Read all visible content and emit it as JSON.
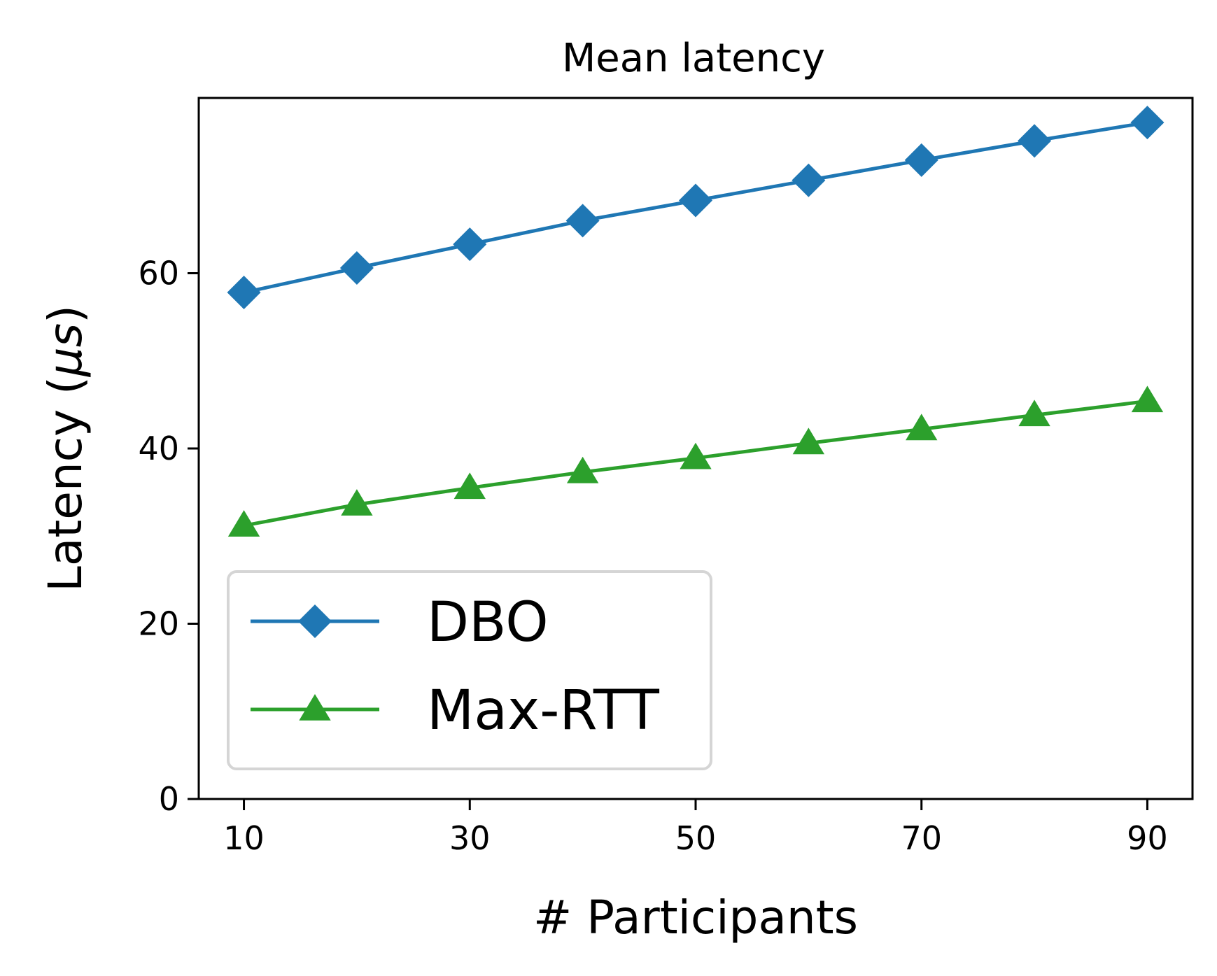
{
  "chart_data": {
    "type": "line",
    "title": "Mean latency",
    "xlabel": "# Participants",
    "ylabel_prefix": "Latency (",
    "ylabel_unit": "μs",
    "ylabel_suffix": ")",
    "x": [
      10,
      20,
      30,
      40,
      50,
      60,
      70,
      80,
      90
    ],
    "xticks": [
      10,
      30,
      50,
      70,
      90
    ],
    "yticks": [
      0,
      20,
      40,
      60
    ],
    "xlim": [
      6,
      94
    ],
    "ylim": [
      0,
      80
    ],
    "grid": false,
    "legend_position": "lower-left",
    "series": [
      {
        "name": "DBO",
        "color": "#1f77b4",
        "marker": "diamond",
        "values": [
          57.8,
          60.6,
          63.3,
          66.0,
          68.3,
          70.6,
          72.9,
          75.1,
          77.2
        ]
      },
      {
        "name": "Max-RTT",
        "color": "#2ca02c",
        "marker": "triangle",
        "values": [
          31.2,
          33.6,
          35.5,
          37.3,
          38.9,
          40.6,
          42.2,
          43.8,
          45.4
        ]
      }
    ]
  }
}
